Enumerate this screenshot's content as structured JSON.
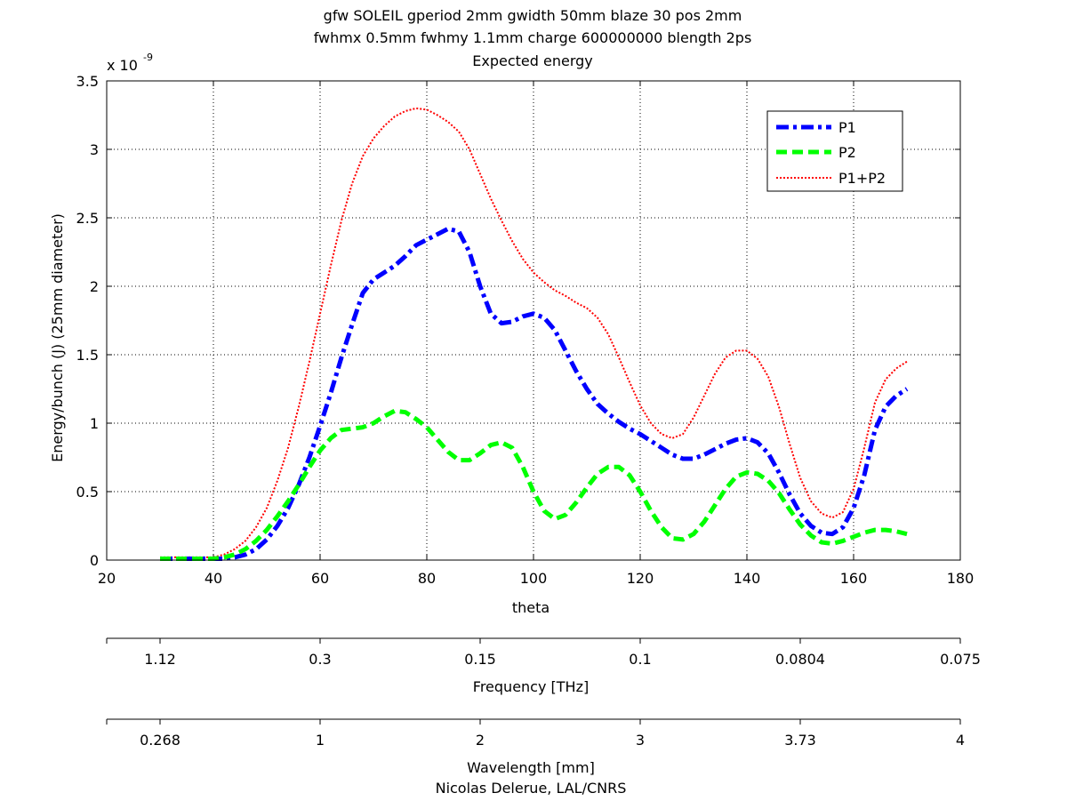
{
  "chart_data": {
    "type": "line",
    "title_lines": [
      "gfw SOLEIL gperiod 2mm gwidth 50mm blaze 30 pos 2mm",
      "fwhmx 0.5mm fwhmy 1.1mm charge 600000000 blength 2ps",
      "Expected energy"
    ],
    "xlabel": "theta",
    "ylabel": "Energy/bunch (J) (25mm diameter)",
    "y_multiplier_label": "x 10",
    "y_multiplier_exponent": "-9",
    "xlim": [
      20,
      180
    ],
    "ylim": [
      0,
      3.5
    ],
    "xticks": [
      20,
      40,
      60,
      80,
      100,
      120,
      140,
      160,
      180
    ],
    "xtick_labels": [
      "20",
      "40",
      "60",
      "80",
      "100",
      "120",
      "140",
      "160",
      "180"
    ],
    "yticks": [
      0,
      0.5,
      1,
      1.5,
      2,
      2.5,
      3,
      3.5
    ],
    "ytick_labels": [
      "0",
      "0.5",
      "1",
      "1.5",
      "2",
      "2.5",
      "3",
      "3.5"
    ],
    "grid": true,
    "legend_position": "top-right",
    "series": [
      {
        "name": "P1",
        "color": "#0000ff",
        "style": "dashdot",
        "x": [
          30,
          35,
          40,
          42,
          44,
          46,
          48,
          50,
          52,
          54,
          56,
          58,
          60,
          62,
          64,
          66,
          68,
          70,
          72,
          74,
          76,
          78,
          80,
          82,
          84,
          86,
          88,
          90,
          92,
          94,
          96,
          98,
          100,
          102,
          104,
          106,
          108,
          110,
          112,
          114,
          116,
          118,
          120,
          122,
          124,
          126,
          128,
          130,
          132,
          134,
          136,
          138,
          140,
          142,
          144,
          146,
          148,
          150,
          152,
          154,
          156,
          158,
          160,
          162,
          164,
          166,
          168,
          170
        ],
        "y": [
          0.01,
          0.01,
          0.01,
          0.01,
          0.02,
          0.04,
          0.08,
          0.15,
          0.25,
          0.38,
          0.55,
          0.75,
          0.98,
          1.22,
          1.48,
          1.72,
          1.95,
          2.05,
          2.1,
          2.15,
          2.22,
          2.3,
          2.34,
          2.38,
          2.42,
          2.4,
          2.25,
          2.0,
          1.8,
          1.73,
          1.74,
          1.78,
          1.8,
          1.77,
          1.68,
          1.53,
          1.38,
          1.25,
          1.14,
          1.07,
          1.01,
          0.96,
          0.92,
          0.87,
          0.82,
          0.77,
          0.74,
          0.74,
          0.77,
          0.81,
          0.85,
          0.88,
          0.89,
          0.86,
          0.78,
          0.64,
          0.48,
          0.34,
          0.25,
          0.2,
          0.19,
          0.24,
          0.38,
          0.62,
          0.95,
          1.12,
          1.2,
          1.25
        ]
      },
      {
        "name": "P2",
        "color": "#00ff00",
        "style": "dashed",
        "x": [
          30,
          35,
          40,
          42,
          44,
          46,
          48,
          50,
          52,
          54,
          56,
          58,
          60,
          62,
          64,
          66,
          68,
          70,
          72,
          74,
          76,
          78,
          80,
          82,
          84,
          86,
          88,
          90,
          92,
          94,
          96,
          98,
          100,
          102,
          104,
          106,
          108,
          110,
          112,
          114,
          116,
          118,
          120,
          122,
          124,
          126,
          128,
          130,
          132,
          134,
          136,
          138,
          140,
          142,
          144,
          146,
          148,
          150,
          152,
          154,
          156,
          158,
          160,
          162,
          164,
          166,
          168,
          170
        ],
        "y": [
          0.01,
          0.01,
          0.01,
          0.02,
          0.04,
          0.08,
          0.14,
          0.22,
          0.32,
          0.43,
          0.55,
          0.68,
          0.8,
          0.89,
          0.95,
          0.96,
          0.97,
          1.0,
          1.05,
          1.09,
          1.08,
          1.03,
          0.97,
          0.88,
          0.79,
          0.73,
          0.73,
          0.78,
          0.84,
          0.86,
          0.82,
          0.68,
          0.5,
          0.36,
          0.3,
          0.33,
          0.42,
          0.53,
          0.63,
          0.68,
          0.68,
          0.62,
          0.5,
          0.36,
          0.24,
          0.16,
          0.15,
          0.19,
          0.28,
          0.4,
          0.52,
          0.61,
          0.64,
          0.63,
          0.58,
          0.49,
          0.37,
          0.26,
          0.18,
          0.13,
          0.12,
          0.14,
          0.17,
          0.2,
          0.22,
          0.22,
          0.21,
          0.19
        ]
      },
      {
        "name": "P1+P2",
        "color": "#ff0000",
        "style": "dotted",
        "x": [
          30,
          35,
          40,
          42,
          44,
          46,
          48,
          50,
          52,
          54,
          56,
          58,
          60,
          62,
          64,
          66,
          68,
          70,
          72,
          74,
          76,
          78,
          80,
          82,
          84,
          86,
          88,
          90,
          92,
          94,
          96,
          98,
          100,
          102,
          104,
          106,
          108,
          110,
          112,
          114,
          116,
          118,
          120,
          122,
          124,
          126,
          128,
          130,
          132,
          134,
          136,
          138,
          140,
          142,
          144,
          146,
          148,
          150,
          152,
          154,
          156,
          158,
          160,
          162,
          164,
          166,
          168,
          170
        ],
        "y": [
          0.02,
          0.02,
          0.02,
          0.04,
          0.08,
          0.14,
          0.24,
          0.38,
          0.58,
          0.82,
          1.12,
          1.45,
          1.8,
          2.15,
          2.48,
          2.75,
          2.95,
          3.08,
          3.17,
          3.24,
          3.28,
          3.3,
          3.29,
          3.25,
          3.2,
          3.13,
          3.0,
          2.82,
          2.64,
          2.48,
          2.33,
          2.2,
          2.1,
          2.03,
          1.97,
          1.93,
          1.88,
          1.84,
          1.77,
          1.65,
          1.48,
          1.3,
          1.13,
          1.0,
          0.92,
          0.89,
          0.92,
          1.04,
          1.2,
          1.36,
          1.48,
          1.53,
          1.53,
          1.47,
          1.34,
          1.12,
          0.85,
          0.6,
          0.43,
          0.34,
          0.31,
          0.35,
          0.52,
          0.82,
          1.15,
          1.32,
          1.4,
          1.45
        ]
      }
    ],
    "secondary_axes": [
      {
        "id": "frequency",
        "label": "Frequency [THz]",
        "tick_positions": [
          30,
          60,
          90,
          120,
          150,
          180
        ],
        "tick_labels": [
          "1.12",
          "0.3",
          "0.15",
          "0.1",
          "0.0804",
          "0.075"
        ]
      },
      {
        "id": "wavelength",
        "label": "Wavelength [mm]",
        "tick_positions": [
          30,
          60,
          90,
          120,
          150,
          180
        ],
        "tick_labels": [
          "0.268",
          "1",
          "2",
          "3",
          "3.73",
          "4"
        ]
      }
    ],
    "footer": "Nicolas Delerue, LAL/CNRS"
  }
}
